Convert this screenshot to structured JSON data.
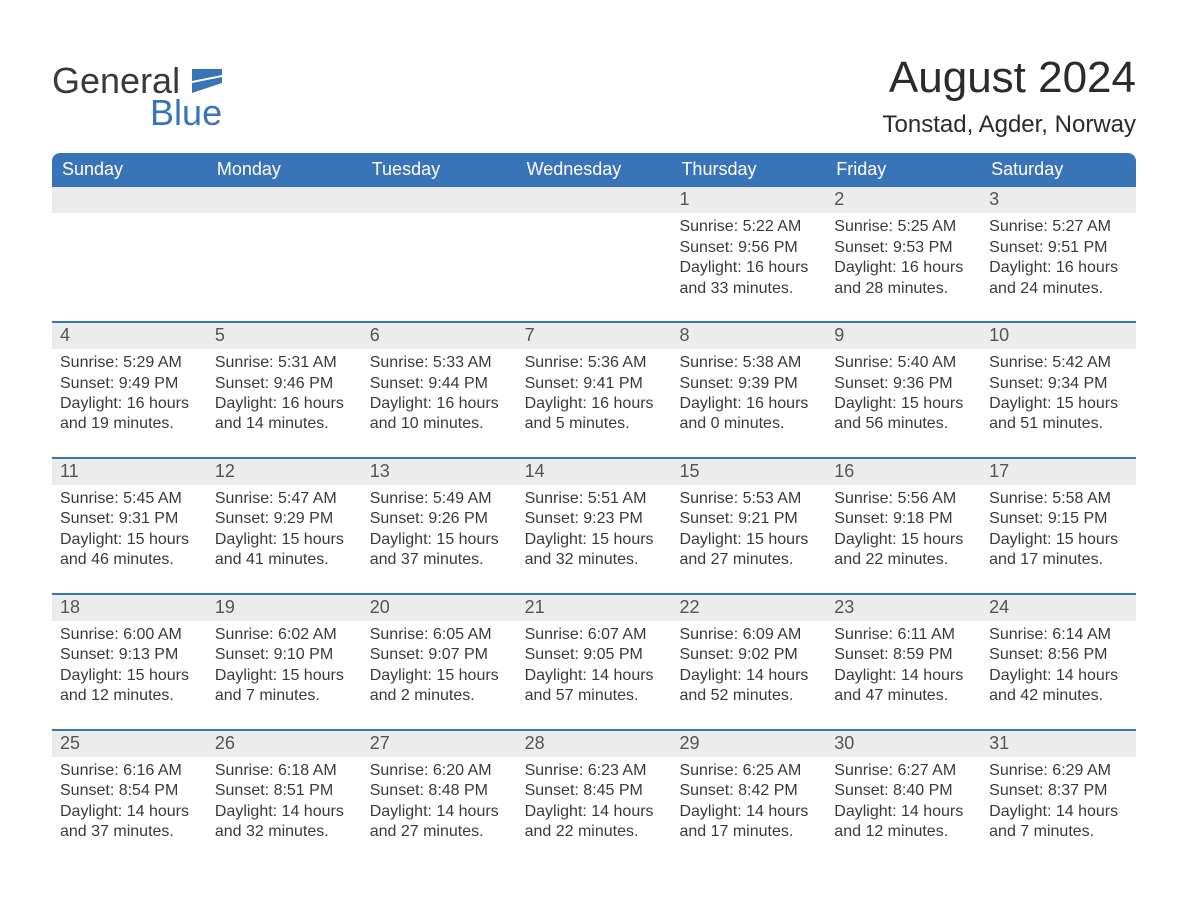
{
  "brand": {
    "word1": "General",
    "word2": "Blue",
    "text_color": "#3a3a3a",
    "accent_color": "#3a74b8"
  },
  "title": "August 2024",
  "location": "Tonstad, Agder, Norway",
  "colors": {
    "header_bg": "#3a74b8",
    "header_text": "#ffffff",
    "daynum_bg": "#ececec",
    "daynum_text": "#555555",
    "body_text": "#3a3a3a",
    "week_divider": "#3a74b8",
    "page_bg": "#ffffff"
  },
  "typography": {
    "month_title_fontsize": 44,
    "location_fontsize": 24,
    "weekday_fontsize": 18,
    "daynum_fontsize": 18,
    "body_fontsize": 16
  },
  "weekdays": [
    "Sunday",
    "Monday",
    "Tuesday",
    "Wednesday",
    "Thursday",
    "Friday",
    "Saturday"
  ],
  "weeks": [
    [
      {
        "empty": true
      },
      {
        "empty": true
      },
      {
        "empty": true
      },
      {
        "empty": true
      },
      {
        "num": "1",
        "sunrise": "Sunrise: 5:22 AM",
        "sunset": "Sunset: 9:56 PM",
        "daylight": "Daylight: 16 hours and 33 minutes."
      },
      {
        "num": "2",
        "sunrise": "Sunrise: 5:25 AM",
        "sunset": "Sunset: 9:53 PM",
        "daylight": "Daylight: 16 hours and 28 minutes."
      },
      {
        "num": "3",
        "sunrise": "Sunrise: 5:27 AM",
        "sunset": "Sunset: 9:51 PM",
        "daylight": "Daylight: 16 hours and 24 minutes."
      }
    ],
    [
      {
        "num": "4",
        "sunrise": "Sunrise: 5:29 AM",
        "sunset": "Sunset: 9:49 PM",
        "daylight": "Daylight: 16 hours and 19 minutes."
      },
      {
        "num": "5",
        "sunrise": "Sunrise: 5:31 AM",
        "sunset": "Sunset: 9:46 PM",
        "daylight": "Daylight: 16 hours and 14 minutes."
      },
      {
        "num": "6",
        "sunrise": "Sunrise: 5:33 AM",
        "sunset": "Sunset: 9:44 PM",
        "daylight": "Daylight: 16 hours and 10 minutes."
      },
      {
        "num": "7",
        "sunrise": "Sunrise: 5:36 AM",
        "sunset": "Sunset: 9:41 PM",
        "daylight": "Daylight: 16 hours and 5 minutes."
      },
      {
        "num": "8",
        "sunrise": "Sunrise: 5:38 AM",
        "sunset": "Sunset: 9:39 PM",
        "daylight": "Daylight: 16 hours and 0 minutes."
      },
      {
        "num": "9",
        "sunrise": "Sunrise: 5:40 AM",
        "sunset": "Sunset: 9:36 PM",
        "daylight": "Daylight: 15 hours and 56 minutes."
      },
      {
        "num": "10",
        "sunrise": "Sunrise: 5:42 AM",
        "sunset": "Sunset: 9:34 PM",
        "daylight": "Daylight: 15 hours and 51 minutes."
      }
    ],
    [
      {
        "num": "11",
        "sunrise": "Sunrise: 5:45 AM",
        "sunset": "Sunset: 9:31 PM",
        "daylight": "Daylight: 15 hours and 46 minutes."
      },
      {
        "num": "12",
        "sunrise": "Sunrise: 5:47 AM",
        "sunset": "Sunset: 9:29 PM",
        "daylight": "Daylight: 15 hours and 41 minutes."
      },
      {
        "num": "13",
        "sunrise": "Sunrise: 5:49 AM",
        "sunset": "Sunset: 9:26 PM",
        "daylight": "Daylight: 15 hours and 37 minutes."
      },
      {
        "num": "14",
        "sunrise": "Sunrise: 5:51 AM",
        "sunset": "Sunset: 9:23 PM",
        "daylight": "Daylight: 15 hours and 32 minutes."
      },
      {
        "num": "15",
        "sunrise": "Sunrise: 5:53 AM",
        "sunset": "Sunset: 9:21 PM",
        "daylight": "Daylight: 15 hours and 27 minutes."
      },
      {
        "num": "16",
        "sunrise": "Sunrise: 5:56 AM",
        "sunset": "Sunset: 9:18 PM",
        "daylight": "Daylight: 15 hours and 22 minutes."
      },
      {
        "num": "17",
        "sunrise": "Sunrise: 5:58 AM",
        "sunset": "Sunset: 9:15 PM",
        "daylight": "Daylight: 15 hours and 17 minutes."
      }
    ],
    [
      {
        "num": "18",
        "sunrise": "Sunrise: 6:00 AM",
        "sunset": "Sunset: 9:13 PM",
        "daylight": "Daylight: 15 hours and 12 minutes."
      },
      {
        "num": "19",
        "sunrise": "Sunrise: 6:02 AM",
        "sunset": "Sunset: 9:10 PM",
        "daylight": "Daylight: 15 hours and 7 minutes."
      },
      {
        "num": "20",
        "sunrise": "Sunrise: 6:05 AM",
        "sunset": "Sunset: 9:07 PM",
        "daylight": "Daylight: 15 hours and 2 minutes."
      },
      {
        "num": "21",
        "sunrise": "Sunrise: 6:07 AM",
        "sunset": "Sunset: 9:05 PM",
        "daylight": "Daylight: 14 hours and 57 minutes."
      },
      {
        "num": "22",
        "sunrise": "Sunrise: 6:09 AM",
        "sunset": "Sunset: 9:02 PM",
        "daylight": "Daylight: 14 hours and 52 minutes."
      },
      {
        "num": "23",
        "sunrise": "Sunrise: 6:11 AM",
        "sunset": "Sunset: 8:59 PM",
        "daylight": "Daylight: 14 hours and 47 minutes."
      },
      {
        "num": "24",
        "sunrise": "Sunrise: 6:14 AM",
        "sunset": "Sunset: 8:56 PM",
        "daylight": "Daylight: 14 hours and 42 minutes."
      }
    ],
    [
      {
        "num": "25",
        "sunrise": "Sunrise: 6:16 AM",
        "sunset": "Sunset: 8:54 PM",
        "daylight": "Daylight: 14 hours and 37 minutes."
      },
      {
        "num": "26",
        "sunrise": "Sunrise: 6:18 AM",
        "sunset": "Sunset: 8:51 PM",
        "daylight": "Daylight: 14 hours and 32 minutes."
      },
      {
        "num": "27",
        "sunrise": "Sunrise: 6:20 AM",
        "sunset": "Sunset: 8:48 PM",
        "daylight": "Daylight: 14 hours and 27 minutes."
      },
      {
        "num": "28",
        "sunrise": "Sunrise: 6:23 AM",
        "sunset": "Sunset: 8:45 PM",
        "daylight": "Daylight: 14 hours and 22 minutes."
      },
      {
        "num": "29",
        "sunrise": "Sunrise: 6:25 AM",
        "sunset": "Sunset: 8:42 PM",
        "daylight": "Daylight: 14 hours and 17 minutes."
      },
      {
        "num": "30",
        "sunrise": "Sunrise: 6:27 AM",
        "sunset": "Sunset: 8:40 PM",
        "daylight": "Daylight: 14 hours and 12 minutes."
      },
      {
        "num": "31",
        "sunrise": "Sunrise: 6:29 AM",
        "sunset": "Sunset: 8:37 PM",
        "daylight": "Daylight: 14 hours and 7 minutes."
      }
    ]
  ]
}
